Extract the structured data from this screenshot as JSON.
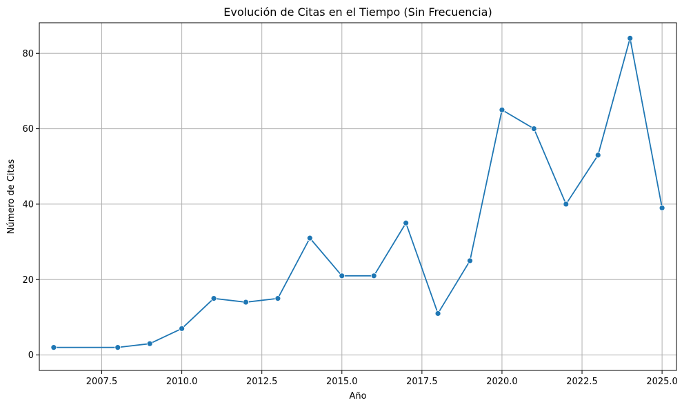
{
  "chart_data": {
    "type": "line",
    "title": "Evolución de Citas en el Tiempo (Sin Frecuencia)",
    "xlabel": "Año",
    "ylabel": "Número de Citas",
    "xlim": [
      2005.55,
      2025.45
    ],
    "ylim": [
      -4.1,
      88.1
    ],
    "xticks": [
      2007.5,
      2010.0,
      2012.5,
      2015.0,
      2017.5,
      2020.0,
      2022.5,
      2025.0
    ],
    "xtick_labels": [
      "2007.5",
      "2010.0",
      "2012.5",
      "2015.0",
      "2017.5",
      "2020.0",
      "2022.5",
      "2025.0"
    ],
    "yticks": [
      0,
      20,
      40,
      60,
      80
    ],
    "ytick_labels": [
      "0",
      "20",
      "40",
      "60",
      "80"
    ],
    "grid": true,
    "series": [
      {
        "color": "#1f77b4",
        "x": [
          2006,
          2008,
          2009,
          2010,
          2011,
          2012,
          2013,
          2014,
          2015,
          2016,
          2017,
          2018,
          2019,
          2020,
          2021,
          2022,
          2023,
          2024,
          2025
        ],
        "y": [
          2,
          2,
          3,
          7,
          15,
          14,
          15,
          31,
          21,
          21,
          35,
          11,
          25,
          65,
          60,
          40,
          53,
          84,
          39
        ]
      }
    ]
  }
}
